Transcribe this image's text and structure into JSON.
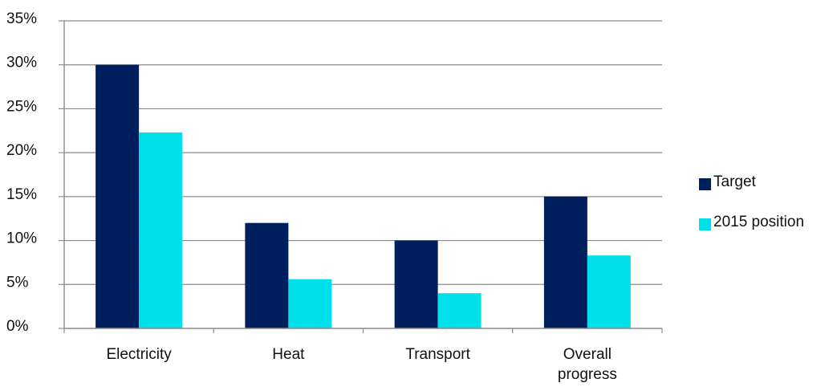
{
  "chart_data": {
    "type": "bar",
    "categories": [
      "Electricity",
      "Heat",
      "Transport",
      "Overall progress"
    ],
    "category_label_lines": [
      [
        "Electricity"
      ],
      [
        "Heat"
      ],
      [
        "Transport"
      ],
      [
        "Overall",
        "progress"
      ]
    ],
    "series": [
      {
        "name": "Target",
        "values": [
          30,
          12,
          10,
          15
        ],
        "color": "#001f5f"
      },
      {
        "name": "2015 position",
        "values": [
          22.3,
          5.6,
          4.0,
          8.3
        ],
        "color": "#00e0ea"
      }
    ],
    "y_ticks": [
      "0%",
      "5%",
      "10%",
      "15%",
      "20%",
      "25%",
      "30%",
      "35%"
    ],
    "y_tick_values": [
      0,
      5,
      10,
      15,
      20,
      25,
      30,
      35
    ],
    "ylim": [
      0,
      35
    ],
    "grid": true,
    "legend_position": "right",
    "title": "",
    "xlabel": "",
    "ylabel": ""
  }
}
